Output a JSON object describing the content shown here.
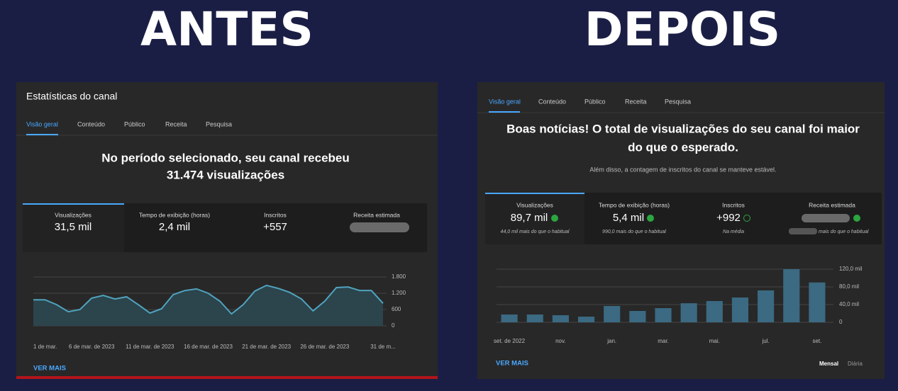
{
  "headings": {
    "before": "ANTES",
    "after": "DEPOIS"
  },
  "before": {
    "title": "Estatísticas do canal",
    "tabs": [
      "Visão geral",
      "Conteúdo",
      "Público",
      "Receita",
      "Pesquisa"
    ],
    "headline": [
      "No período selecionado, seu canal recebeu",
      "31.474 visualizações"
    ],
    "cards": [
      {
        "label": "Visualizações",
        "value": "31,5 mil"
      },
      {
        "label": "Tempo de exibição (horas)",
        "value": "2,4 mil"
      },
      {
        "label": "Inscritos",
        "value": "+557"
      },
      {
        "label": "Receita estimada"
      }
    ],
    "more": "VER MAIS"
  },
  "after": {
    "tabs": [
      "Visão geral",
      "Conteúdo",
      "Público",
      "Receita",
      "Pesquisa"
    ],
    "headline": [
      "Boas notícias! O total de visualizações do seu canal foi maior",
      "do que o esperado."
    ],
    "subtext": "Além disso, a contagem de inscritos do canal se manteve estável.",
    "cards": [
      {
        "label": "Visualizações",
        "value": "89,7 mil",
        "note": "44,0 mil mais do que o habitual"
      },
      {
        "label": "Tempo de exibição (horas)",
        "value": "5,4 mil",
        "note": "990,0 mais do que o habitual"
      },
      {
        "label": "Inscritos",
        "value": "+992",
        "note": "Na média"
      },
      {
        "label": "Receita estimada",
        "note": "mais do que o habitual"
      }
    ],
    "more": "VER MAIS",
    "toggle": [
      "Mensal",
      "Diária"
    ]
  },
  "chart_data": [
    {
      "type": "line",
      "categories": [
        "1 de mar.",
        null,
        null,
        null,
        null,
        "6 de mar. de 2023",
        null,
        null,
        null,
        null,
        "11 de mar. de 2023",
        null,
        null,
        null,
        null,
        "16 de mar. de 2023",
        null,
        null,
        null,
        null,
        "21 de mar. de 2023",
        null,
        null,
        null,
        null,
        "26 de mar. de 2023",
        null,
        null,
        null,
        null,
        "31 de m..."
      ],
      "values": [
        960,
        960,
        780,
        520,
        600,
        1020,
        1120,
        990,
        1070,
        780,
        470,
        630,
        1150,
        1300,
        1360,
        1200,
        910,
        440,
        780,
        1280,
        1490,
        1380,
        1230,
        990,
        550,
        910,
        1410,
        1430,
        1300,
        1300,
        830
      ],
      "color": "#4fa3bf",
      "ylim": [
        0,
        1800
      ],
      "yticks": [
        0,
        600,
        {
          "value": 1200,
          "label": "1.200"
        },
        {
          "value": 1800,
          "label": "1.800"
        }
      ],
      "grid": true
    },
    {
      "type": "bar",
      "categories": [
        "set. de 2022",
        null,
        "nov.",
        null,
        "jan.",
        null,
        "mar.",
        null,
        "mai.",
        null,
        "jul.",
        null,
        "set."
      ],
      "values": [
        17600,
        17600,
        16000,
        12800,
        36800,
        25600,
        32000,
        43000,
        48000,
        56000,
        72000,
        120000,
        90000
      ],
      "color": "#3b6a82",
      "ylim": [
        0,
        128000
      ],
      "yticks": [
        0,
        {
          "value": 40000,
          "label": "40,0 mil"
        },
        {
          "value": 80000,
          "label": "80,0 mil"
        },
        {
          "value": 120000,
          "label": "120,0 mil"
        }
      ],
      "grid": true
    }
  ]
}
